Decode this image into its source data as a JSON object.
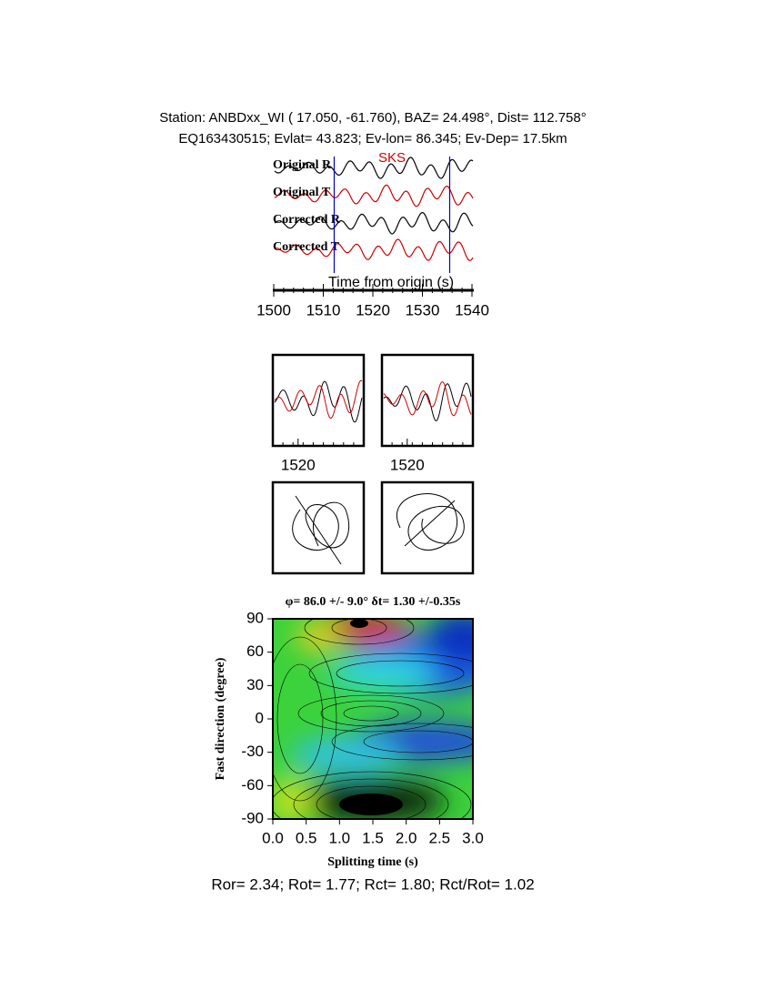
{
  "header": {
    "line1": "Station: ANBDxx_WI (  17.050,  -61.760), BAZ=   24.498°, Dist=  112.758°",
    "line2": "EQ163430515; Evlat=  43.823; Ev-lon=  86.345; Ev-Dep= 17.5km"
  },
  "chart_data": [
    {
      "type": "line",
      "xlabel": "Time from origin (s)",
      "annotation": "SKS",
      "series": [
        {
          "name": "Original R",
          "color": "#000000"
        },
        {
          "name": "Original T",
          "color": "#d00000"
        },
        {
          "name": "Corrected R",
          "color": "#000000"
        },
        {
          "name": "Corrected T",
          "color": "#d00000"
        }
      ],
      "window": [
        1512.2,
        1535.5
      ],
      "window_color": "#0000cc",
      "xlim": [
        1500,
        1540
      ],
      "xticks": [
        1500,
        1510,
        1520,
        1530,
        1540
      ]
    },
    {
      "type": "line",
      "xlim": [
        1515,
        1533
      ],
      "xticks": [
        1520
      ]
    },
    {
      "type": "line",
      "xlim": [
        1515,
        1533
      ],
      "xticks": [
        1520
      ]
    },
    {
      "type": "contour",
      "title": "φ= 86.0 +/- 9.0° δt= 1.30 +/-0.35s",
      "xlabel": "Splitting time (s)",
      "ylabel": "Fast direction (degree)",
      "xlim": [
        0,
        3
      ],
      "ylim": [
        -90,
        90
      ],
      "xticks": [
        {
          "value": 0,
          "label": "0.0"
        },
        {
          "value": 0.5,
          "label": "0.5"
        },
        {
          "value": 1,
          "label": "1.0"
        },
        {
          "value": 1.5,
          "label": "1.5"
        },
        {
          "value": 2,
          "label": "2.0"
        },
        {
          "value": 2.5,
          "label": "2.5"
        },
        {
          "value": 3,
          "label": "3.0"
        }
      ],
      "yticks": [
        -90,
        -60,
        -30,
        0,
        30,
        60,
        90
      ]
    }
  ],
  "footer": "Ror= 2.34; Rot= 1.77; Rct= 1.80; Rct/Rot= 1.02"
}
